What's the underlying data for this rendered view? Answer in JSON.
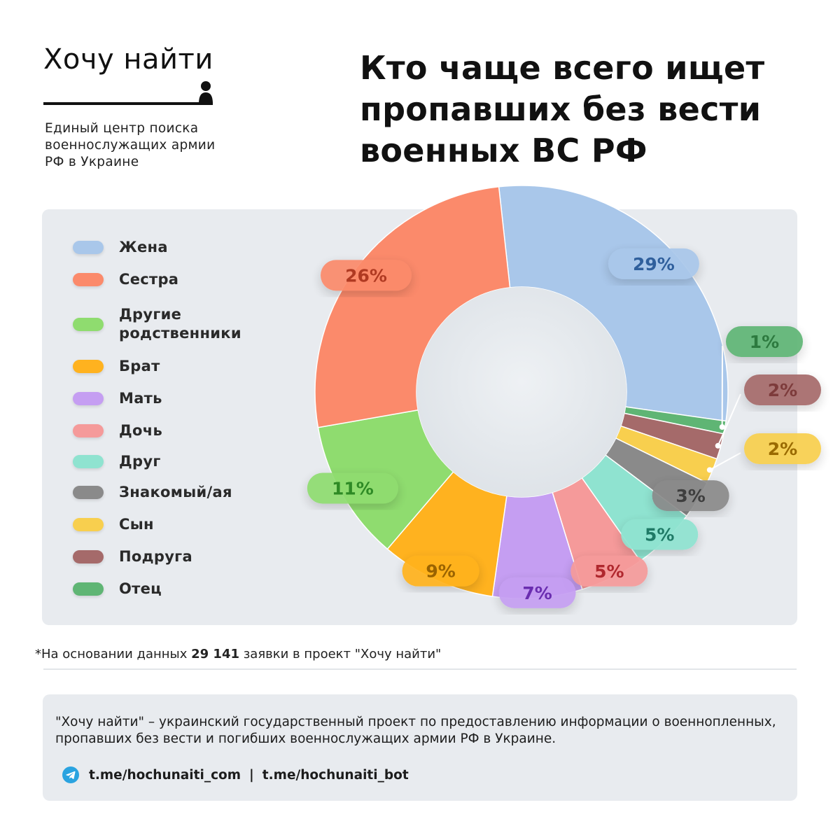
{
  "brand": {
    "title": "Хочу найти",
    "subtitle": "Единый центр поиска военнослужащих армии РФ в Украине"
  },
  "headline": "Кто чаще всего ищет пропавших без вести военных ВС РФ",
  "chart_data": {
    "type": "pie",
    "donut": true,
    "legend_position": "left",
    "slices": [
      {
        "label": "Жена",
        "value": 29,
        "value_label": "29%",
        "color": "#a9c7ea",
        "text_color": "#2f5f9c"
      },
      {
        "label": "Отец",
        "value": 1,
        "value_label": "1%",
        "color": "#5fb574",
        "text_color": "#2d7a3f"
      },
      {
        "label": "Подруга",
        "value": 2,
        "value_label": "2%",
        "color": "#a56a6a",
        "text_color": "#7d3b3b"
      },
      {
        "label": "Сын",
        "value": 2,
        "value_label": "2%",
        "color": "#f8cf4e",
        "text_color": "#9a6a00"
      },
      {
        "label": "Знакомый/ая",
        "value": 3,
        "value_label": "3%",
        "color": "#8a8a8a",
        "text_color": "#3e3e3e"
      },
      {
        "label": "Друг",
        "value": 5,
        "value_label": "5%",
        "color": "#8fe3d0",
        "text_color": "#1f7a66"
      },
      {
        "label": "Дочь",
        "value": 5,
        "value_label": "5%",
        "color": "#f59a9a",
        "text_color": "#b0282e"
      },
      {
        "label": "Мать",
        "value": 7,
        "value_label": "7%",
        "color": "#c59ef2",
        "text_color": "#6a2db0"
      },
      {
        "label": "Брат",
        "value": 9,
        "value_label": "9%",
        "color": "#ffb21f",
        "text_color": "#9a6300"
      },
      {
        "label": "Другие родственники",
        "value": 11,
        "value_label": "11%",
        "color": "#8fdc6f",
        "text_color": "#2e8a25"
      },
      {
        "label": "Сестра",
        "value": 26,
        "value_label": "26%",
        "color": "#fb8a6b",
        "text_color": "#b03a22"
      }
    ],
    "legend_order": [
      "Жена",
      "Сестра",
      "Другие родственники",
      "Брат",
      "Мать",
      "Дочь",
      "Друг",
      "Знакомый/ая",
      "Сын",
      "Подруга",
      "Отец"
    ],
    "legend_lines": {
      "Другие родственники": [
        "Другие",
        "родственники"
      ]
    }
  },
  "footnote": {
    "prefix": "*На основании данных ",
    "count": "29 141",
    "suffix": " заявки в проект \"Хочу найти\""
  },
  "info": {
    "text": "\"Хочу найти\" – украинский государственный проект по предоставлению информации о военнопленных, пропавших без вести и погибших военнослужащих армии РФ в Украине.",
    "link1": "t.me/hochunaiti_com",
    "separator": "|",
    "link2": "t.me/hochunaiti_bot",
    "icon": "telegram-icon"
  }
}
